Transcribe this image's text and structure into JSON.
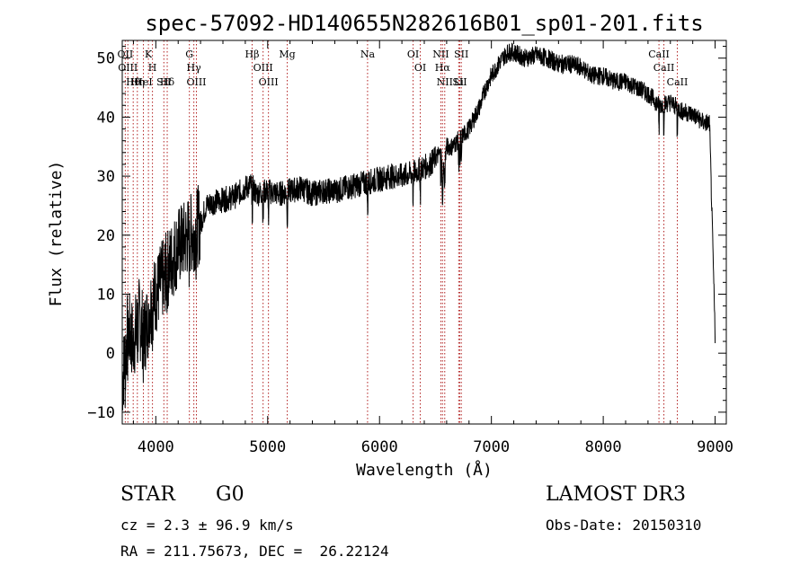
{
  "chart_data": {
    "type": "line",
    "title": "spec-57092-HD140655N282616B01_sp01-201.fits",
    "xlabel": "Wavelength (Å)",
    "ylabel": "Flux (relative)",
    "xlim": [
      3700,
      9100
    ],
    "ylim": [
      -12,
      53
    ],
    "x_ticks": [
      4000,
      5000,
      6000,
      7000,
      8000,
      9000
    ],
    "x_tick_labels": [
      "4000",
      "5000",
      "6000",
      "7000",
      "8000",
      "9000"
    ],
    "y_ticks": [
      -10,
      0,
      10,
      20,
      30,
      40,
      50
    ],
    "y_tick_labels": [
      "−10",
      "0",
      "10",
      "20",
      "30",
      "40",
      "50"
    ],
    "series": [
      {
        "name": "flux",
        "x": [
          3700,
          3750,
          3800,
          3850,
          3900,
          3950,
          4000,
          4050,
          4100,
          4150,
          4200,
          4250,
          4300,
          4350,
          4400,
          4450,
          4500,
          4600,
          4700,
          4800,
          4850,
          4900,
          5000,
          5100,
          5200,
          5300,
          5400,
          5500,
          5600,
          5700,
          5800,
          5900,
          6000,
          6100,
          6200,
          6300,
          6350,
          6400,
          6450,
          6500,
          6550,
          6563,
          6600,
          6650,
          6700,
          6750,
          6800,
          6850,
          6900,
          6950,
          7000,
          7050,
          7100,
          7150,
          7200,
          7300,
          7400,
          7500,
          7600,
          7700,
          7800,
          7900,
          8000,
          8100,
          8200,
          8300,
          8400,
          8500,
          8600,
          8700,
          8800,
          8900,
          8950,
          9000
        ],
        "y": [
          -5,
          4,
          2,
          6,
          3,
          8,
          10,
          12,
          14,
          16,
          18,
          19,
          20,
          21,
          22,
          25,
          25.5,
          26,
          26.5,
          28,
          28.5,
          27,
          27.5,
          27,
          27.5,
          28,
          27,
          27.5,
          27.5,
          28,
          28.5,
          29,
          29.5,
          30,
          30,
          30.5,
          31,
          31.5,
          32,
          33,
          34,
          30,
          35,
          35,
          36,
          37,
          38,
          40,
          42,
          45,
          47,
          48.5,
          50,
          51,
          51,
          50,
          50.5,
          50,
          49,
          49,
          48.5,
          47,
          47,
          46,
          46,
          45,
          44,
          42,
          42.5,
          41,
          40.5,
          39,
          39,
          3
        ]
      }
    ],
    "line_markers": [
      {
        "wavelength": 3727,
        "label": "OII"
      },
      {
        "wavelength": 3750,
        "label": "OIII"
      },
      {
        "wavelength": 3798,
        "label": "Hθ"
      },
      {
        "wavelength": 3835,
        "label": "Hη"
      },
      {
        "wavelength": 3889,
        "label": "HeI"
      },
      {
        "wavelength": 3934,
        "label": "K"
      },
      {
        "wavelength": 3970,
        "label": "H"
      },
      {
        "wavelength": 4072,
        "label": "SII"
      },
      {
        "wavelength": 4102,
        "label": "Hδ"
      },
      {
        "wavelength": 4300,
        "label": "G"
      },
      {
        "wavelength": 4340,
        "label": "Hγ"
      },
      {
        "wavelength": 4363,
        "label": "OIII"
      },
      {
        "wavelength": 4861,
        "label": "Hβ"
      },
      {
        "wavelength": 4959,
        "label": "OIII"
      },
      {
        "wavelength": 5007,
        "label": "OIII"
      },
      {
        "wavelength": 5175,
        "label": "Mg"
      },
      {
        "wavelength": 5893,
        "label": "Na"
      },
      {
        "wavelength": 6300,
        "label": "OI"
      },
      {
        "wavelength": 6364,
        "label": "OI"
      },
      {
        "wavelength": 6548,
        "label": "NII"
      },
      {
        "wavelength": 6563,
        "label": "Hα"
      },
      {
        "wavelength": 6583,
        "label": "NII"
      },
      {
        "wavelength": 6708,
        "label": "Li"
      },
      {
        "wavelength": 6717,
        "label": "SII"
      },
      {
        "wavelength": 6731,
        "label": "SII"
      },
      {
        "wavelength": 8498,
        "label": "CaII"
      },
      {
        "wavelength": 8542,
        "label": "CaII"
      },
      {
        "wavelength": 8662,
        "label": "CaII"
      }
    ]
  },
  "info": {
    "object_class": "STAR",
    "subclass": "G0",
    "redshift": "cz = 2.3 ± 96.9 km/s",
    "coords": "RA = 211.75673, DEC =  26.22124",
    "survey": "LAMOST DR3",
    "obs_date": "Obs-Date: 20150310"
  },
  "colors": {
    "axis": "#000000",
    "spectrum": "#000000",
    "marker": "#b22222",
    "background": "#ffffff"
  }
}
